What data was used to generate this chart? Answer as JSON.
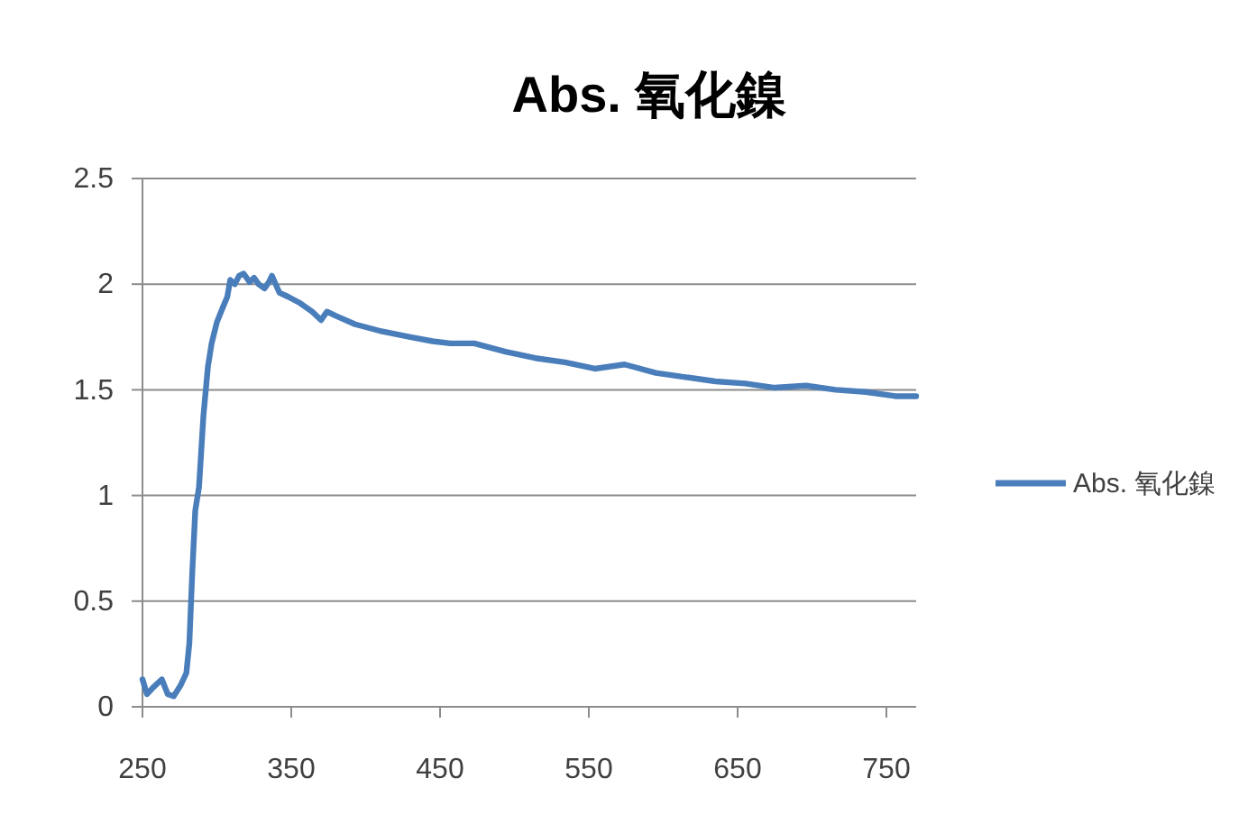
{
  "chart_data": {
    "type": "line",
    "title": "Abs. 氧化鎳",
    "x": [
      250,
      253,
      257,
      263,
      267,
      271,
      275.5,
      279.5,
      281.5,
      283.5,
      285.5,
      288,
      291,
      294,
      296.5,
      300,
      304,
      307,
      309,
      312,
      315,
      318,
      322,
      325,
      328,
      332,
      335,
      337,
      342,
      348,
      356,
      364,
      370,
      374,
      380,
      393,
      409,
      430,
      445,
      457,
      473,
      494,
      514,
      534,
      554,
      574,
      595,
      615,
      635,
      655,
      675,
      696,
      716,
      736,
      756,
      770
    ],
    "series": [
      {
        "name": "Abs. 氧化鎳",
        "color": "#4a7ebb",
        "values": [
          0.13,
          0.06,
          0.09,
          0.13,
          0.06,
          0.05,
          0.1,
          0.16,
          0.3,
          0.64,
          0.93,
          1.04,
          1.38,
          1.61,
          1.72,
          1.82,
          1.89,
          1.94,
          2.02,
          2.0,
          2.04,
          2.05,
          2.01,
          2.03,
          2.0,
          1.98,
          2.01,
          2.04,
          1.96,
          1.94,
          1.91,
          1.87,
          1.83,
          1.87,
          1.85,
          1.81,
          1.78,
          1.75,
          1.73,
          1.72,
          1.72,
          1.68,
          1.65,
          1.63,
          1.6,
          1.62,
          1.58,
          1.56,
          1.54,
          1.53,
          1.51,
          1.52,
          1.5,
          1.49,
          1.47,
          1.47
        ]
      }
    ],
    "xlim": [
      250,
      770
    ],
    "ylim": [
      0,
      2.5
    ],
    "xticks": [
      250,
      350,
      450,
      550,
      650,
      750
    ],
    "yticks": [
      0,
      0.5,
      1,
      1.5,
      2,
      2.5
    ],
    "grid": "y",
    "legend": "right"
  }
}
